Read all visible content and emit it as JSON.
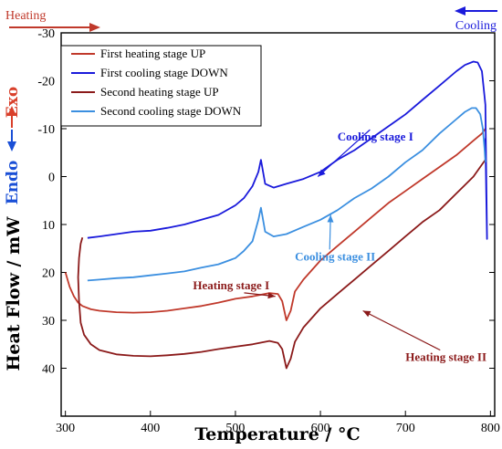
{
  "chart_data": {
    "type": "line",
    "title": "",
    "xlabel": "Temperature / °C",
    "ylabel": "Heat Flow / mW",
    "xlim": [
      295,
      805
    ],
    "ylim": [
      -30,
      50
    ],
    "y_inverted": true,
    "x_ticks": [
      300,
      400,
      500,
      600,
      700,
      800
    ],
    "y_ticks": [
      -30,
      -20,
      -10,
      0,
      10,
      20,
      30,
      40
    ],
    "grid": false,
    "legend_position": "top-left",
    "series": [
      {
        "name": "First heating stage UP",
        "color": "#c0392b",
        "points": [
          [
            300,
            20
          ],
          [
            305,
            23
          ],
          [
            310,
            25
          ],
          [
            315,
            26.3
          ],
          [
            320,
            27
          ],
          [
            330,
            27.7
          ],
          [
            340,
            28
          ],
          [
            360,
            28.3
          ],
          [
            380,
            28.4
          ],
          [
            400,
            28.3
          ],
          [
            420,
            28
          ],
          [
            440,
            27.5
          ],
          [
            460,
            27
          ],
          [
            480,
            26.3
          ],
          [
            500,
            25.5
          ],
          [
            520,
            25
          ],
          [
            540,
            24.3
          ],
          [
            550,
            24.5
          ],
          [
            555,
            26
          ],
          [
            560,
            30
          ],
          [
            565,
            28
          ],
          [
            570,
            24
          ],
          [
            580,
            21.5
          ],
          [
            600,
            17.5
          ],
          [
            620,
            14.5
          ],
          [
            640,
            11.5
          ],
          [
            660,
            8.5
          ],
          [
            680,
            5.5
          ],
          [
            700,
            3
          ],
          [
            720,
            0.5
          ],
          [
            740,
            -2
          ],
          [
            760,
            -4.5
          ],
          [
            780,
            -7.5
          ],
          [
            790,
            -9
          ],
          [
            794,
            -10
          ]
        ]
      },
      {
        "name": "First cooling stage DOWN",
        "color": "#1a1adb",
        "points": [
          [
            794,
            -8
          ],
          [
            795,
            3
          ],
          [
            796,
            13
          ],
          [
            794,
            -15
          ],
          [
            790,
            -22
          ],
          [
            785,
            -23.8
          ],
          [
            780,
            -24
          ],
          [
            770,
            -23.3
          ],
          [
            760,
            -22
          ],
          [
            740,
            -19
          ],
          [
            720,
            -16
          ],
          [
            700,
            -13
          ],
          [
            680,
            -10.5
          ],
          [
            660,
            -8
          ],
          [
            640,
            -5.5
          ],
          [
            620,
            -3.5
          ],
          [
            600,
            -1
          ],
          [
            580,
            0.5
          ],
          [
            560,
            1.5
          ],
          [
            545,
            2.3
          ],
          [
            535,
            1.5
          ],
          [
            530,
            -3.5
          ],
          [
            527,
            -1
          ],
          [
            520,
            2
          ],
          [
            510,
            4.5
          ],
          [
            500,
            6
          ],
          [
            480,
            8
          ],
          [
            460,
            9
          ],
          [
            440,
            10
          ],
          [
            420,
            10.7
          ],
          [
            400,
            11.3
          ],
          [
            380,
            11.5
          ],
          [
            360,
            12
          ],
          [
            340,
            12.5
          ],
          [
            326,
            12.8
          ]
        ]
      },
      {
        "name": "Second heating stage UP",
        "color": "#8b1a1a",
        "points": [
          [
            320,
            12.7
          ],
          [
            318,
            14
          ],
          [
            316,
            17
          ],
          [
            315,
            21
          ],
          [
            316,
            26
          ],
          [
            318,
            30.5
          ],
          [
            322,
            33
          ],
          [
            330,
            35
          ],
          [
            340,
            36.2
          ],
          [
            360,
            37.1
          ],
          [
            380,
            37.4
          ],
          [
            400,
            37.5
          ],
          [
            420,
            37.3
          ],
          [
            440,
            37
          ],
          [
            460,
            36.6
          ],
          [
            480,
            36
          ],
          [
            500,
            35.5
          ],
          [
            520,
            35
          ],
          [
            540,
            34.3
          ],
          [
            550,
            34.7
          ],
          [
            555,
            36
          ],
          [
            560,
            40
          ],
          [
            565,
            38
          ],
          [
            570,
            34.5
          ],
          [
            580,
            31.5
          ],
          [
            600,
            27.5
          ],
          [
            620,
            24.5
          ],
          [
            640,
            21.5
          ],
          [
            660,
            18.5
          ],
          [
            680,
            15.5
          ],
          [
            700,
            12.5
          ],
          [
            720,
            9.5
          ],
          [
            740,
            7
          ],
          [
            760,
            3.5
          ],
          [
            780,
            0
          ],
          [
            790,
            -2.5
          ],
          [
            794,
            -3.5
          ]
        ]
      },
      {
        "name": "Second cooling stage DOWN",
        "color": "#3b8fe0",
        "points": [
          [
            794,
            -3
          ],
          [
            793,
            -6
          ],
          [
            791,
            -10
          ],
          [
            788,
            -13
          ],
          [
            783,
            -14.3
          ],
          [
            778,
            -14.3
          ],
          [
            770,
            -13.5
          ],
          [
            760,
            -12
          ],
          [
            740,
            -9
          ],
          [
            720,
            -5.5
          ],
          [
            700,
            -3
          ],
          [
            680,
            0
          ],
          [
            660,
            2.5
          ],
          [
            640,
            4.5
          ],
          [
            620,
            7
          ],
          [
            600,
            9
          ],
          [
            580,
            10.5
          ],
          [
            560,
            12
          ],
          [
            545,
            12.5
          ],
          [
            535,
            11.5
          ],
          [
            530,
            6.5
          ],
          [
            527,
            9
          ],
          [
            520,
            13.5
          ],
          [
            510,
            15.5
          ],
          [
            500,
            17
          ],
          [
            480,
            18.3
          ],
          [
            460,
            19
          ],
          [
            440,
            19.8
          ],
          [
            420,
            20.2
          ],
          [
            400,
            20.6
          ],
          [
            380,
            21
          ],
          [
            360,
            21.2
          ],
          [
            340,
            21.5
          ],
          [
            326,
            21.7
          ]
        ]
      }
    ],
    "annotations": [
      {
        "text": "Cooling stage I",
        "color": "#1a1adb",
        "x": 620,
        "y": -7.5,
        "arrow_to": [
          597,
          0
        ]
      },
      {
        "text": "Cooling stage II",
        "color": "#3b8fe0",
        "x": 570,
        "y": 17.5,
        "arrow_to": [
          612,
          8
        ]
      },
      {
        "text": "Heating stage I",
        "color": "#8b1a1a",
        "x": 450,
        "y": 23.5,
        "arrow_to": [
          547,
          25
        ]
      },
      {
        "text": "Heating stage II",
        "color": "#8b1a1a",
        "x": 700,
        "y": 38.5,
        "arrow_to": [
          650,
          28
        ]
      }
    ]
  },
  "labels": {
    "heating": "Heating",
    "cooling": "Cooling",
    "exo": "Exo",
    "endo": "Endo"
  },
  "colors": {
    "heating_red": "#c0392b",
    "cooling_blue": "#1a1adb",
    "exo_red": "#d9402b",
    "endo_blue": "#1a4fd6"
  }
}
